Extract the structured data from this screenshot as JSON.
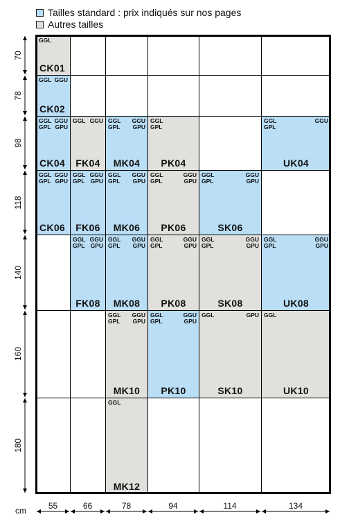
{
  "legend": [
    {
      "color": "#b9def6",
      "label": "Tailles standard : prix indiqués sur nos pages"
    },
    {
      "color": "#e2e0dc",
      "label": "Autres tailles"
    }
  ],
  "colors": {
    "standard": "#b9def6",
    "other": "#e2e0dc",
    "empty": "#ffffff"
  },
  "unit": "cm",
  "widths": [
    "55",
    "66",
    "78",
    "94",
    "114",
    "134"
  ],
  "heights": [
    "70",
    "78",
    "98",
    "118",
    "140",
    "160",
    "180"
  ],
  "cells": [
    {
      "row": 0,
      "col": 0,
      "kind": "other",
      "code": "CK01",
      "tl": [
        "GGL"
      ],
      "tr": []
    },
    {
      "row": 1,
      "col": 0,
      "kind": "standard",
      "code": "CK02",
      "tl": [
        "GGL"
      ],
      "tr": [
        "GGU"
      ]
    },
    {
      "row": 2,
      "col": 0,
      "kind": "standard",
      "code": "CK04",
      "tl": [
        "GGL",
        "GPL"
      ],
      "tr": [
        "GGU",
        "GPU"
      ]
    },
    {
      "row": 2,
      "col": 1,
      "kind": "other",
      "code": "FK04",
      "tl": [
        "GGL"
      ],
      "tr": [
        "GGU"
      ]
    },
    {
      "row": 2,
      "col": 2,
      "kind": "standard",
      "code": "MK04",
      "tl": [
        "GGL",
        "GPL"
      ],
      "tr": [
        "GGU",
        "GPU"
      ]
    },
    {
      "row": 2,
      "col": 3,
      "kind": "other",
      "code": "PK04",
      "tl": [
        "GGL",
        "GPL"
      ],
      "tr": []
    },
    {
      "row": 2,
      "col": 5,
      "kind": "standard",
      "code": "UK04",
      "tl": [
        "GGL",
        "GPL"
      ],
      "tr": [
        "GGU"
      ]
    },
    {
      "row": 3,
      "col": 0,
      "kind": "standard",
      "code": "CK06",
      "tl": [
        "GGL",
        "GPL"
      ],
      "tr": [
        "GGU",
        "GPU"
      ]
    },
    {
      "row": 3,
      "col": 1,
      "kind": "standard",
      "code": "FK06",
      "tl": [
        "GGL",
        "GPL"
      ],
      "tr": [
        "GGU",
        "GPU"
      ]
    },
    {
      "row": 3,
      "col": 2,
      "kind": "standard",
      "code": "MK06",
      "tl": [
        "GGL",
        "GPL"
      ],
      "tr": [
        "GGU",
        "GPU"
      ]
    },
    {
      "row": 3,
      "col": 3,
      "kind": "other",
      "code": "PK06",
      "tl": [
        "GGL",
        "GPL"
      ],
      "tr": [
        "GGU",
        "GPU"
      ]
    },
    {
      "row": 3,
      "col": 4,
      "kind": "standard",
      "code": "SK06",
      "tl": [
        "GGL",
        "GPL"
      ],
      "tr": [
        "GGU",
        "GPU"
      ]
    },
    {
      "row": 4,
      "col": 1,
      "kind": "standard",
      "code": "FK08",
      "tl": [
        "GGL",
        "GPL"
      ],
      "tr": [
        "GGU",
        "GPU"
      ]
    },
    {
      "row": 4,
      "col": 2,
      "kind": "standard",
      "code": "MK08",
      "tl": [
        "GGL",
        "GPL"
      ],
      "tr": [
        "GGU",
        "GPU"
      ]
    },
    {
      "row": 4,
      "col": 3,
      "kind": "other",
      "code": "PK08",
      "tl": [
        "GGL",
        "GPL"
      ],
      "tr": [
        "GGU",
        "GPU"
      ]
    },
    {
      "row": 4,
      "col": 4,
      "kind": "other",
      "code": "SK08",
      "tl": [
        "GGL",
        "GPL"
      ],
      "tr": [
        "GGU",
        "GPU"
      ]
    },
    {
      "row": 4,
      "col": 5,
      "kind": "standard",
      "code": "UK08",
      "tl": [
        "GGL",
        "GPL"
      ],
      "tr": [
        "GGU",
        "GPU"
      ]
    },
    {
      "row": 5,
      "col": 2,
      "kind": "other",
      "code": "MK10",
      "tl": [
        "GGL",
        "GPL"
      ],
      "tr": [
        "GGU",
        "GPU"
      ]
    },
    {
      "row": 5,
      "col": 3,
      "kind": "standard",
      "code": "PK10",
      "tl": [
        "GGL",
        "GPL"
      ],
      "tr": [
        "GGU",
        "GPU"
      ]
    },
    {
      "row": 5,
      "col": 4,
      "kind": "other",
      "code": "SK10",
      "tl": [
        "GGL"
      ],
      "tr": [
        "GPU"
      ]
    },
    {
      "row": 5,
      "col": 5,
      "kind": "other",
      "code": "UK10",
      "tl": [
        "GGL"
      ],
      "tr": []
    },
    {
      "row": 6,
      "col": 2,
      "kind": "other",
      "code": "MK12",
      "tl": [
        "GGL"
      ],
      "tr": []
    }
  ]
}
